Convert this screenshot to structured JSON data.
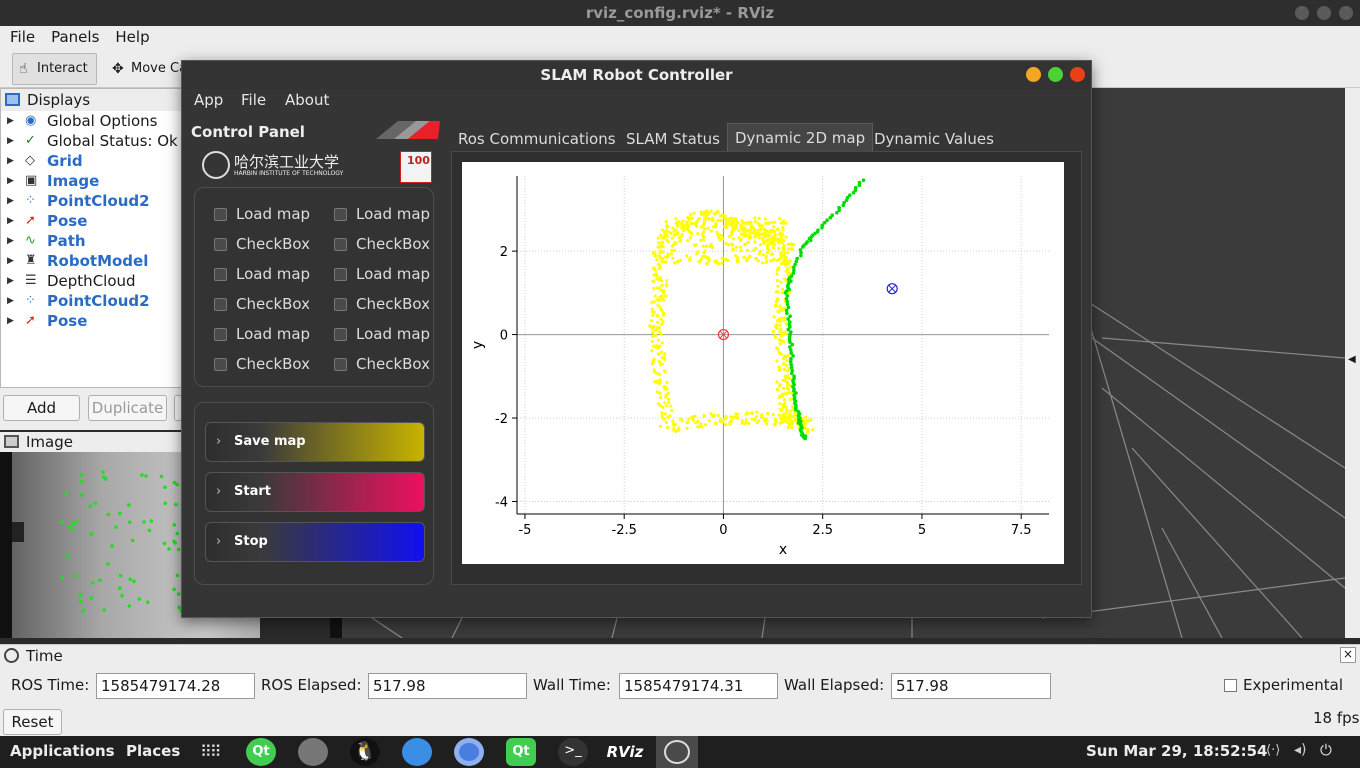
{
  "window": {
    "title": "rviz_config.rviz* - RViz"
  },
  "menu": {
    "file": "File",
    "panels": "Panels",
    "help": "Help"
  },
  "toolbar": {
    "interact": "Interact",
    "move_camera": "Move Ca"
  },
  "displays": {
    "title": "Displays",
    "items": [
      {
        "label": "Global Options",
        "icon": "globe-icon",
        "bold": false
      },
      {
        "label": "Global Status: Ok",
        "icon": "check-icon",
        "bold": false
      },
      {
        "label": "Grid",
        "icon": "grid-icon",
        "bold": true
      },
      {
        "label": "Image",
        "icon": "image-icon",
        "bold": true
      },
      {
        "label": "PointCloud2",
        "icon": "pointcloud-icon",
        "bold": true
      },
      {
        "label": "Pose",
        "icon": "pose-arrow-icon",
        "bold": true
      },
      {
        "label": "Path",
        "icon": "path-icon",
        "bold": true
      },
      {
        "label": "RobotModel",
        "icon": "robot-icon",
        "bold": true
      },
      {
        "label": "DepthCloud",
        "icon": "depth-icon",
        "bold": false
      },
      {
        "label": "PointCloud2",
        "icon": "pointcloud-icon",
        "bold": true
      },
      {
        "label": "Pose",
        "icon": "pose-arrow-icon",
        "bold": true
      }
    ],
    "add": "Add",
    "duplicate": "Duplicate"
  },
  "image_panel": {
    "title": "Image"
  },
  "time_panel": {
    "title": "Time",
    "ros_time_label": "ROS Time:",
    "ros_time": "1585479174.28",
    "ros_elapsed_label": "ROS Elapsed:",
    "ros_elapsed": "517.98",
    "wall_time_label": "Wall Time:",
    "wall_time": "1585479174.31",
    "wall_elapsed_label": "Wall Elapsed:",
    "wall_elapsed": "517.98",
    "experimental": "Experimental"
  },
  "status": {
    "reset": "Reset",
    "fps": "18 fps"
  },
  "taskbar": {
    "applications": "Applications",
    "places": "Places",
    "clock": "Sun Mar 29, 18:52:54"
  },
  "slam": {
    "title": "SLAM Robot Controller",
    "menu": [
      "App",
      "File",
      "About"
    ],
    "control_panel": "Control Panel",
    "university": "哈尔滨工业大学",
    "university_en": "HARBIN INSTITUTE OF TECHNOLOGY",
    "checkboxes": [
      "Load map",
      "Load map",
      "CheckBox",
      "CheckBox",
      "Load map",
      "Load map",
      "CheckBox",
      "CheckBox",
      "Load map",
      "Load map",
      "CheckBox",
      "CheckBox"
    ],
    "buttons": [
      {
        "label": "Save map",
        "color": "#c8b400"
      },
      {
        "label": "Start",
        "color": "#ee1060"
      },
      {
        "label": "Stop",
        "color": "#1010f0"
      }
    ],
    "tabs": [
      "Ros Communications",
      "SLAM Status",
      "Dynamic 2D map",
      "Dynamic Values"
    ],
    "active_tab": "Dynamic 2D map"
  },
  "chart_data": {
    "type": "scatter",
    "xlabel": "x",
    "ylabel": "y",
    "xlim": [
      -5.2,
      8.2
    ],
    "ylim": [
      -4.3,
      3.8
    ],
    "xticks": [
      -5,
      -2.5,
      0,
      2.5,
      5,
      7.5
    ],
    "xtick_labels": [
      "-5",
      "-2.5",
      "0",
      "2.5",
      "5",
      "7.5"
    ],
    "yticks": [
      -4,
      -2,
      0,
      2
    ],
    "ytick_labels": [
      "-4",
      "-2",
      "0",
      "2"
    ],
    "grid": true,
    "series": [
      {
        "color": "#ffff00",
        "kind": "outline-map",
        "outline": [
          [
            -1.6,
            2.2
          ],
          [
            -0.6,
            2.9
          ],
          [
            0.2,
            2.7
          ],
          [
            0.9,
            2.4
          ],
          [
            1.6,
            2.2
          ],
          [
            1.5,
            1.2
          ],
          [
            1.4,
            0.2
          ],
          [
            1.5,
            -1.0
          ],
          [
            1.6,
            -1.9
          ],
          [
            2.1,
            -2.2
          ],
          [
            1.2,
            -2.0
          ],
          [
            0.0,
            -2.0
          ],
          [
            -1.4,
            -2.2
          ],
          [
            -1.6,
            -1.0
          ],
          [
            -1.7,
            0.2
          ],
          [
            -1.6,
            1.2
          ],
          [
            -1.6,
            2.2
          ]
        ]
      },
      {
        "color": "#00dd00",
        "kind": "trajectory",
        "points": [
          [
            3.5,
            3.7
          ],
          [
            3.0,
            3.1
          ],
          [
            2.4,
            2.5
          ],
          [
            2.0,
            2.1
          ],
          [
            1.7,
            1.4
          ],
          [
            1.6,
            1.0
          ],
          [
            1.65,
            0.3
          ],
          [
            1.7,
            -0.3
          ],
          [
            1.75,
            -1.0
          ],
          [
            1.8,
            -1.5
          ],
          [
            1.9,
            -2.0
          ],
          [
            2.0,
            -2.4
          ],
          [
            2.1,
            -2.5
          ]
        ]
      },
      {
        "color": "#ff3333",
        "kind": "marker",
        "points": [
          [
            0,
            0
          ]
        ]
      },
      {
        "color": "#2222cc",
        "kind": "marker",
        "points": [
          [
            4.25,
            1.1
          ]
        ]
      }
    ]
  }
}
